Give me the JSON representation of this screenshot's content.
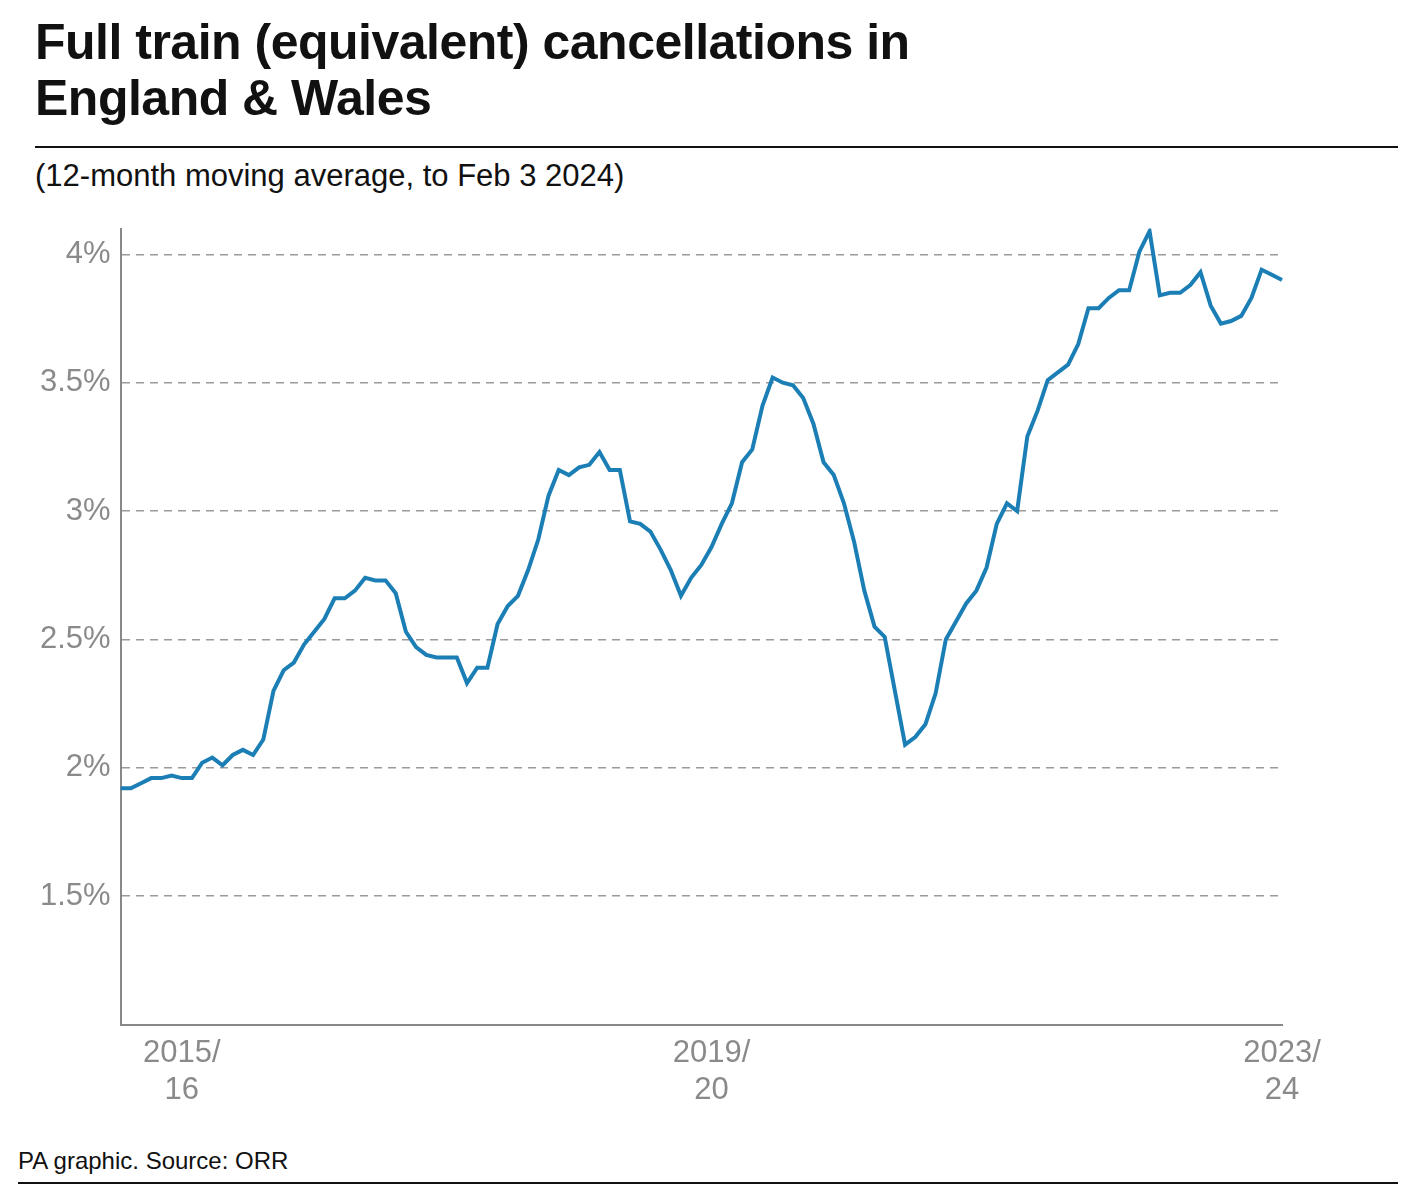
{
  "chart_data": {
    "type": "line",
    "title": "Full train (equivalent) cancellations in England & Wales",
    "subtitle": "(12-month moving average, to Feb 3 2024)",
    "caption": "PA graphic. Source: ORR",
    "categories": [
      null,
      null,
      null,
      null,
      null,
      null,
      "2015/16",
      null,
      null,
      null,
      null,
      null,
      null,
      null,
      null,
      null,
      null,
      null,
      null,
      null,
      null,
      null,
      null,
      null,
      null,
      null,
      null,
      null,
      null,
      null,
      null,
      null,
      null,
      null,
      null,
      null,
      null,
      null,
      null,
      null,
      null,
      null,
      null,
      null,
      null,
      null,
      null,
      null,
      null,
      null,
      null,
      null,
      null,
      null,
      null,
      null,
      null,
      null,
      "2019/20",
      null,
      null,
      null,
      null,
      null,
      null,
      null,
      null,
      null,
      null,
      null,
      null,
      null,
      null,
      null,
      null,
      null,
      null,
      null,
      null,
      null,
      null,
      null,
      null,
      null,
      null,
      null,
      null,
      null,
      null,
      null,
      null,
      null,
      null,
      null,
      null,
      null,
      null,
      null,
      null,
      null,
      null,
      null,
      null,
      null,
      null,
      null,
      null,
      null,
      null,
      null,
      null,
      null,
      null,
      null,
      "2023/24"
    ],
    "values": [
      1.92,
      1.92,
      1.94,
      1.96,
      1.96,
      1.97,
      1.96,
      1.96,
      2.02,
      2.04,
      2.01,
      2.05,
      2.07,
      2.05,
      2.11,
      2.3,
      2.38,
      2.41,
      2.48,
      2.53,
      2.58,
      2.66,
      2.66,
      2.69,
      2.74,
      2.73,
      2.73,
      2.68,
      2.53,
      2.47,
      2.44,
      2.43,
      2.43,
      2.43,
      2.33,
      2.39,
      2.39,
      2.56,
      2.63,
      2.67,
      2.77,
      2.89,
      3.06,
      3.16,
      3.14,
      3.17,
      3.18,
      3.23,
      3.16,
      3.16,
      2.96,
      2.95,
      2.92,
      2.85,
      2.77,
      2.67,
      2.74,
      2.79,
      2.86,
      2.95,
      3.03,
      3.19,
      3.24,
      3.41,
      3.52,
      3.5,
      3.49,
      3.44,
      3.34,
      3.19,
      3.14,
      3.03,
      2.88,
      2.69,
      2.55,
      2.51,
      2.3,
      2.09,
      2.12,
      2.17,
      2.29,
      2.5,
      2.57,
      2.64,
      2.69,
      2.78,
      2.95,
      3.03,
      3.0,
      3.29,
      3.39,
      3.51,
      3.54,
      3.57,
      3.65,
      3.79,
      3.79,
      3.83,
      3.86,
      3.86,
      4.01,
      4.09,
      3.84,
      3.85,
      3.85,
      3.88,
      3.93,
      3.8,
      3.73,
      3.74,
      3.76,
      3.83,
      3.94,
      3.92,
      3.9
    ],
    "color": "#1b7fb6",
    "ylim": [
      1,
      4.1
    ],
    "yticks": [
      {
        "value": 1.5,
        "label": "1.5%"
      },
      {
        "value": 2,
        "label": "2%"
      },
      {
        "value": 2.5,
        "label": "2.5%"
      },
      {
        "value": 3,
        "label": "3%"
      },
      {
        "value": 3.5,
        "label": "3.5%"
      },
      {
        "value": 4,
        "label": "4%"
      }
    ],
    "grid": true
  }
}
